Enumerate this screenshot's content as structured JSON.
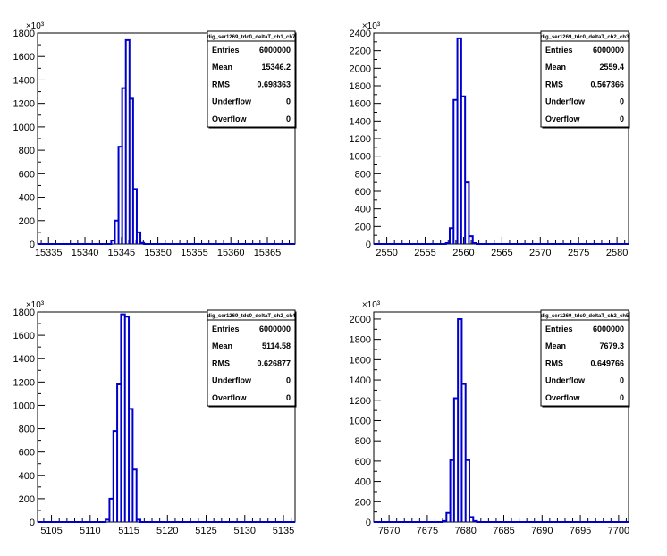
{
  "colors": {
    "histogram_line": "#0000cc",
    "axes": "#000000",
    "background": "#ffffff"
  },
  "chart_data": [
    {
      "type": "histogram",
      "stats": {
        "title": "dig_ser1269_tdc0_deltaT_ch1_ch7",
        "labels": [
          "Entries",
          "Mean",
          "RMS",
          "Underflow",
          "Overflow"
        ],
        "values": [
          "6000000",
          "15346.2",
          "0.698363",
          "0",
          "0"
        ]
      },
      "xlim": [
        15333.5,
        15368.8
      ],
      "ylim": [
        0,
        1800
      ],
      "y_exponent": "×10³",
      "xticks": [
        15335,
        15340,
        15345,
        15350,
        15355,
        15360,
        15365
      ],
      "xtick_labels": [
        "15335",
        "15340",
        "15345",
        "15350",
        "15355",
        "15360",
        "15365"
      ],
      "yticks": [
        0,
        200,
        400,
        600,
        800,
        1000,
        1200,
        1400,
        1600,
        1800
      ],
      "ytick_labels": [
        "0",
        "200",
        "400",
        "600",
        "800",
        "1000",
        "1200",
        "1400",
        "1600",
        "1800"
      ],
      "bins": [
        [
          15343.6,
          15344.1,
          30
        ],
        [
          15344.1,
          15344.6,
          200
        ],
        [
          15344.6,
          15345.1,
          830
        ],
        [
          15345.1,
          15345.6,
          1330
        ],
        [
          15345.6,
          15346.1,
          1740
        ],
        [
          15346.1,
          15346.6,
          1240
        ],
        [
          15346.6,
          15347.1,
          470
        ],
        [
          15347.1,
          15347.6,
          100
        ],
        [
          15347.6,
          15348.1,
          10
        ]
      ]
    },
    {
      "type": "histogram",
      "stats": {
        "title": "dig_ser1269_tdc0_deltaT_ch2_ch3",
        "labels": [
          "Entries",
          "Mean",
          "RMS",
          "Underflow",
          "Overflow"
        ],
        "values": [
          "6000000",
          "2559.4",
          "0.567366",
          "0",
          "0"
        ]
      },
      "xlim": [
        2548.3,
        2581.5
      ],
      "ylim": [
        0,
        2400
      ],
      "y_exponent": "×10³",
      "xticks": [
        2550,
        2555,
        2560,
        2565,
        2570,
        2575,
        2580
      ],
      "xtick_labels": [
        "2550",
        "2555",
        "2560",
        "2565",
        "2570",
        "2575",
        "2580"
      ],
      "yticks": [
        0,
        200,
        400,
        600,
        800,
        1000,
        1200,
        1400,
        1600,
        1800,
        2000,
        2200,
        2400
      ],
      "ytick_labels": [
        "0",
        "200",
        "400",
        "600",
        "800",
        "1000",
        "1200",
        "1400",
        "1600",
        "1800",
        "2000",
        "2200",
        "2400"
      ],
      "bins": [
        [
          2557.7,
          2558.2,
          10
        ],
        [
          2558.2,
          2558.7,
          180
        ],
        [
          2558.7,
          2559.2,
          1640
        ],
        [
          2559.2,
          2559.7,
          2340
        ],
        [
          2559.7,
          2560.2,
          1680
        ],
        [
          2560.2,
          2560.7,
          700
        ],
        [
          2560.7,
          2561.2,
          90
        ],
        [
          2561.2,
          2561.7,
          10
        ]
      ]
    },
    {
      "type": "histogram",
      "stats": {
        "title": "dig_ser1269_tdc0_deltaT_ch2_ch4",
        "labels": [
          "Entries",
          "Mean",
          "RMS",
          "Underflow",
          "Overflow"
        ],
        "values": [
          "6000000",
          "5114.58",
          "0.626877",
          "0",
          "0"
        ]
      },
      "xlim": [
        5103.2,
        5136.5
      ],
      "ylim": [
        0,
        1800
      ],
      "y_exponent": "×10³",
      "xticks": [
        5105,
        5110,
        5115,
        5120,
        5125,
        5130,
        5135
      ],
      "xtick_labels": [
        "5105",
        "5110",
        "5115",
        "5120",
        "5125",
        "5130",
        "5135"
      ],
      "yticks": [
        0,
        200,
        400,
        600,
        800,
        1000,
        1200,
        1400,
        1600,
        1800
      ],
      "ytick_labels": [
        "0",
        "200",
        "400",
        "600",
        "800",
        "1000",
        "1200",
        "1400",
        "1600",
        "1800"
      ],
      "bins": [
        [
          5112.0,
          5112.5,
          20
        ],
        [
          5112.5,
          5113.0,
          200
        ],
        [
          5113.0,
          5113.5,
          780
        ],
        [
          5113.5,
          5114.0,
          1180
        ],
        [
          5114.0,
          5114.5,
          1780
        ],
        [
          5114.5,
          5115.0,
          1760
        ],
        [
          5115.0,
          5115.5,
          970
        ],
        [
          5115.5,
          5116.0,
          450
        ],
        [
          5116.0,
          5116.5,
          20
        ]
      ]
    },
    {
      "type": "histogram",
      "stats": {
        "title": "dig_ser1269_tdc0_deltaT_ch2_ch5",
        "labels": [
          "Entries",
          "Mean",
          "RMS",
          "Underflow",
          "Overflow"
        ],
        "values": [
          "6000000",
          "7679.3",
          "0.649766",
          "0",
          "0"
        ]
      },
      "xlim": [
        7668.0,
        7701.3
      ],
      "ylim": [
        0,
        2070
      ],
      "y_exponent": "×10³",
      "xticks": [
        7670,
        7675,
        7680,
        7685,
        7690,
        7695,
        7700
      ],
      "xtick_labels": [
        "7670",
        "7675",
        "7680",
        "7685",
        "7690",
        "7695",
        "7700"
      ],
      "yticks": [
        0,
        200,
        400,
        600,
        800,
        1000,
        1200,
        1400,
        1600,
        1800,
        2000
      ],
      "ytick_labels": [
        "0",
        "200",
        "400",
        "600",
        "800",
        "1000",
        "1200",
        "1400",
        "1600",
        "1800",
        "2000"
      ],
      "bins": [
        [
          7677.0,
          7677.5,
          10
        ],
        [
          7677.5,
          7678.0,
          90
        ],
        [
          7678.0,
          7678.5,
          610
        ],
        [
          7678.5,
          7679.0,
          1220
        ],
        [
          7679.0,
          7679.5,
          2000
        ],
        [
          7679.5,
          7680.0,
          1360
        ],
        [
          7680.0,
          7680.5,
          610
        ],
        [
          7680.5,
          7681.0,
          50
        ],
        [
          7681.0,
          7681.5,
          10
        ]
      ]
    }
  ]
}
